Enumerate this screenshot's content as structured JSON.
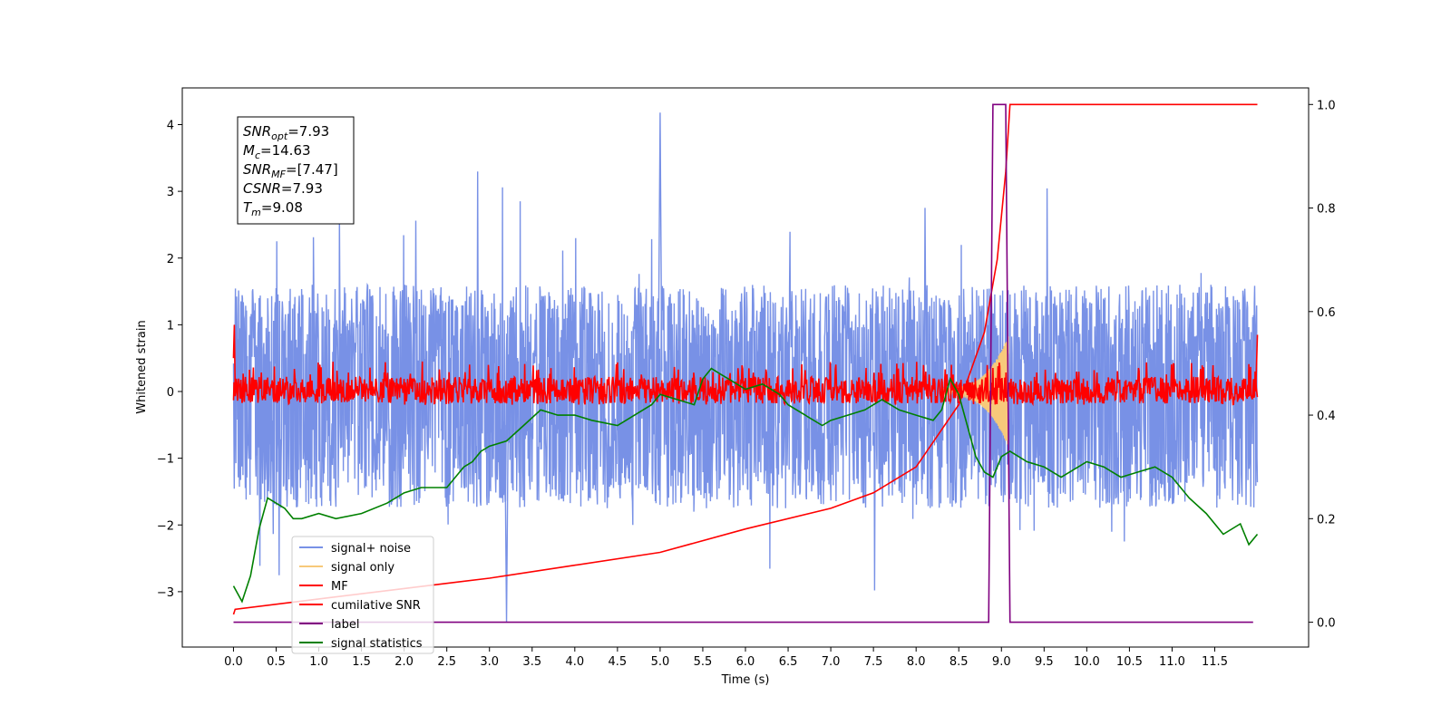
{
  "chart_data": {
    "type": "line",
    "xlabel": "Time (s)",
    "ylabel": "Whitened strain",
    "xlim": [
      -0.6,
      12.6
    ],
    "ylim": [
      -3.83,
      4.55
    ],
    "y2lim": [
      -0.048,
      1.032
    ],
    "x_ticks": [
      "0.0",
      "0.5",
      "1.0",
      "1.5",
      "2.0",
      "2.5",
      "3.0",
      "3.5",
      "4.0",
      "4.5",
      "5.0",
      "5.5",
      "6.0",
      "6.5",
      "7.0",
      "7.5",
      "8.0",
      "8.5",
      "9.0",
      "9.5",
      "10.0",
      "10.5",
      "11.0",
      "11.5"
    ],
    "y_ticks": [
      "4",
      "3",
      "2",
      "1",
      "0",
      "−1",
      "−2",
      "−3"
    ],
    "y2_ticks": [
      "1.0",
      "0.8",
      "0.6",
      "0.4",
      "0.2",
      "0.0"
    ],
    "info_box": [
      {
        "sym": "SNR",
        "sub": "opt",
        "val": "=7.93"
      },
      {
        "sym": "M",
        "sub": "c",
        "val": "=14.63"
      },
      {
        "sym": "SNR",
        "sub": "MF",
        "val": "=[7.47]"
      },
      {
        "sym": "CSNR",
        "sub": "",
        "val": "=7.93"
      },
      {
        "sym": "T",
        "sub": "m",
        "val": "=9.08"
      }
    ],
    "legend": [
      {
        "label": "signal+ noise",
        "color": "#7891e6"
      },
      {
        "label": "signal only",
        "color": "#f7c97a"
      },
      {
        "label": "MF",
        "color": "#ff0000"
      },
      {
        "label": "cumilative SNR",
        "color": "#ff0000"
      },
      {
        "label": "label",
        "color": "#800080"
      },
      {
        "label": "signal statistics",
        "color": "#008000"
      }
    ],
    "legend_loc": "lower-left",
    "series": [
      {
        "name": "signal+ noise",
        "axis": "left",
        "color": "#7891e6",
        "t_range": [
          0.0,
          12.0
        ],
        "envelope_upper": 1.6,
        "envelope_lower": -1.75,
        "max": 4.18,
        "min": -3.45
      },
      {
        "name": "signal only",
        "axis": "left",
        "color": "#f7c97a",
        "chirp_start": 8.3,
        "merger_time": 9.08,
        "peak_amplitude": 0.78
      },
      {
        "name": "MF",
        "axis": "left",
        "color": "#ff0000",
        "t_range": [
          0.0,
          12.0
        ],
        "envelope_upper": 0.45,
        "envelope_lower": -0.2
      },
      {
        "name": "cumilative SNR",
        "axis": "right",
        "color": "#ff0000",
        "x": [
          0.0,
          0.02,
          1.0,
          2.0,
          3.0,
          4.0,
          5.0,
          6.0,
          7.0,
          7.5,
          8.0,
          8.5,
          8.8,
          8.95,
          9.05,
          9.1,
          12.0
        ],
        "y": [
          0.015,
          0.025,
          0.045,
          0.065,
          0.085,
          0.11,
          0.135,
          0.18,
          0.22,
          0.25,
          0.3,
          0.42,
          0.56,
          0.7,
          0.87,
          1.0,
          1.0
        ]
      },
      {
        "name": "label",
        "axis": "right",
        "color": "#800080",
        "x": [
          0.0,
          8.85,
          8.9,
          9.05,
          9.1,
          11.95
        ],
        "y": [
          0.0,
          0.0,
          1.0,
          1.0,
          0.0,
          0.0
        ]
      },
      {
        "name": "signal statistics",
        "axis": "right",
        "color": "#008000",
        "x": [
          0.0,
          0.1,
          0.2,
          0.3,
          0.4,
          0.5,
          0.6,
          0.7,
          0.8,
          1.0,
          1.2,
          1.5,
          1.8,
          2.0,
          2.2,
          2.5,
          2.7,
          2.8,
          2.9,
          3.0,
          3.2,
          3.4,
          3.6,
          3.8,
          4.0,
          4.2,
          4.5,
          4.7,
          4.9,
          5.0,
          5.2,
          5.4,
          5.5,
          5.6,
          5.7,
          5.8,
          6.0,
          6.2,
          6.4,
          6.5,
          6.7,
          6.9,
          7.0,
          7.2,
          7.4,
          7.6,
          7.8,
          8.0,
          8.2,
          8.3,
          8.4,
          8.5,
          8.6,
          8.7,
          8.8,
          8.9,
          9.0,
          9.1,
          9.3,
          9.5,
          9.7,
          9.9,
          10.0,
          10.2,
          10.4,
          10.6,
          10.8,
          11.0,
          11.2,
          11.4,
          11.6,
          11.8,
          11.9,
          12.0
        ],
        "y": [
          0.07,
          0.04,
          0.09,
          0.18,
          0.24,
          0.23,
          0.22,
          0.2,
          0.2,
          0.21,
          0.2,
          0.21,
          0.23,
          0.25,
          0.26,
          0.26,
          0.3,
          0.31,
          0.33,
          0.34,
          0.35,
          0.38,
          0.41,
          0.4,
          0.4,
          0.39,
          0.38,
          0.4,
          0.42,
          0.44,
          0.43,
          0.42,
          0.47,
          0.49,
          0.48,
          0.47,
          0.45,
          0.46,
          0.44,
          0.42,
          0.4,
          0.38,
          0.39,
          0.4,
          0.41,
          0.43,
          0.41,
          0.4,
          0.39,
          0.41,
          0.47,
          0.44,
          0.38,
          0.32,
          0.29,
          0.28,
          0.32,
          0.33,
          0.31,
          0.3,
          0.28,
          0.3,
          0.31,
          0.3,
          0.28,
          0.29,
          0.3,
          0.28,
          0.24,
          0.21,
          0.17,
          0.19,
          0.15,
          0.17
        ]
      }
    ]
  }
}
